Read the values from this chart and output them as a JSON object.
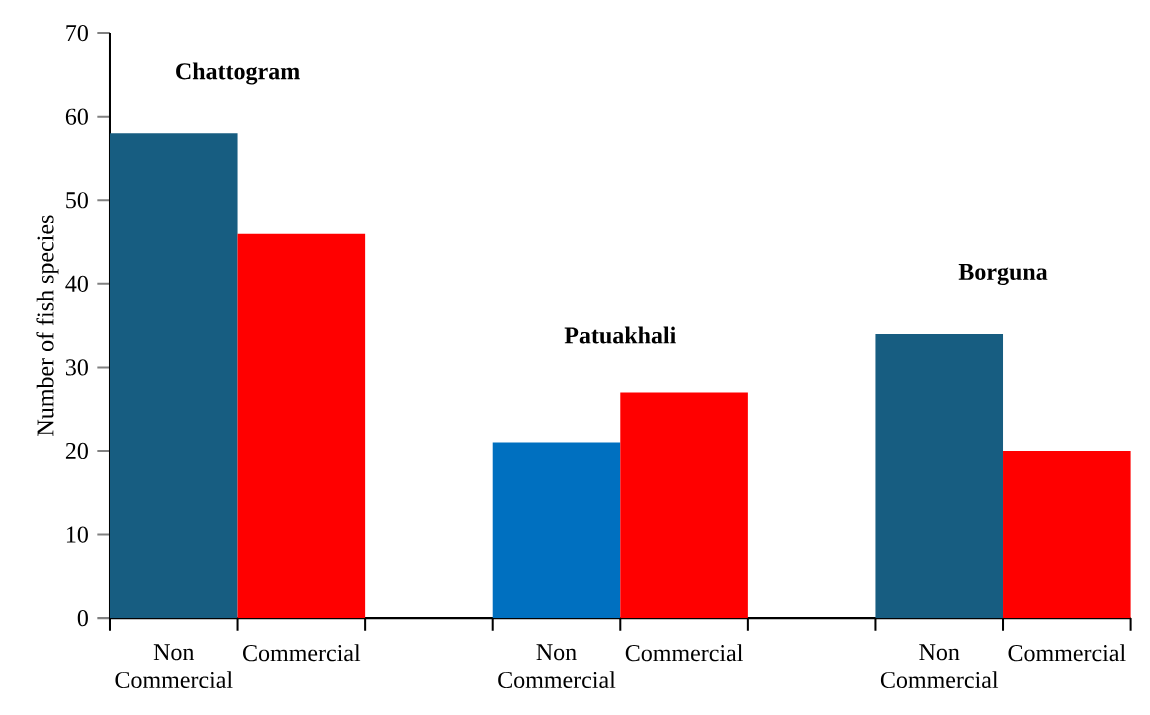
{
  "chart_data": {
    "type": "bar",
    "ylabel": "Number of fish species",
    "categories": [
      "Non Commercial",
      "Commercial",
      null,
      "Non Commercial",
      "Commercial",
      null,
      "Non Commercial",
      "Commercial"
    ],
    "values": [
      58,
      46,
      null,
      21,
      27,
      null,
      34,
      20
    ],
    "colors": [
      "#175d81",
      "#ff0000",
      null,
      "#0070c0",
      "#ff0000",
      null,
      "#175d81",
      "#ff0000"
    ],
    "annotations": [
      "Chattogram",
      "Patuakhali",
      "Borguna"
    ],
    "ylim": [
      0,
      70
    ],
    "yticks": [
      0,
      10,
      20,
      30,
      40,
      50,
      60,
      70
    ],
    "grid": false
  }
}
